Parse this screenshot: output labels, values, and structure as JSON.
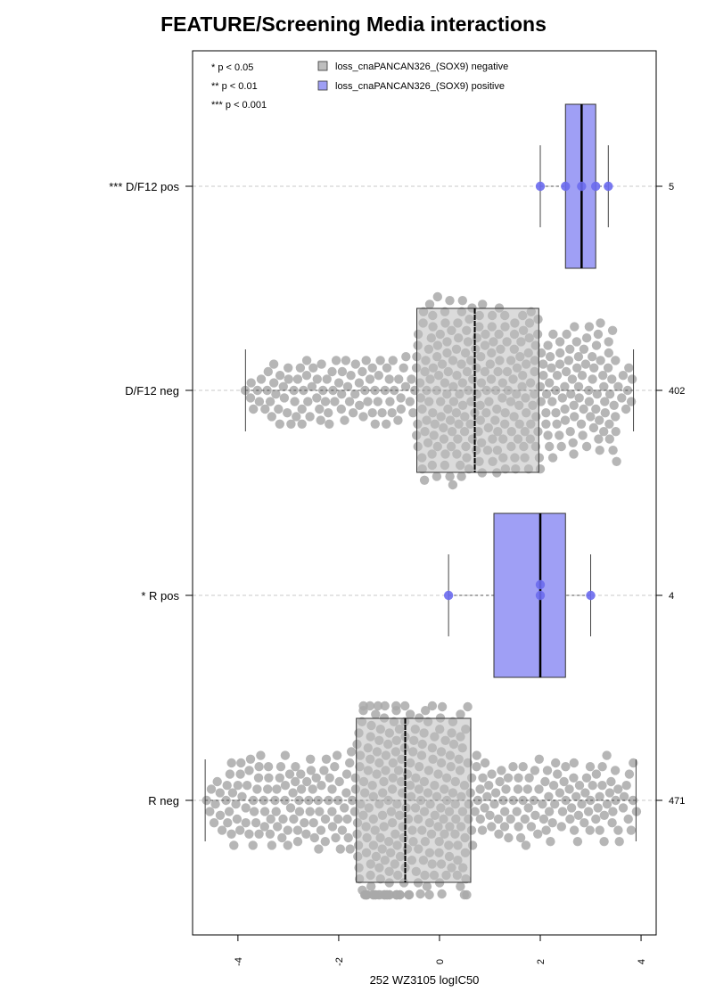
{
  "chart_data": {
    "type": "boxplot",
    "title": "FEATURE/Screening Media interactions",
    "xlabel": "252 WZ3105 logIC50",
    "xlim": [
      -4.9,
      4.3
    ],
    "x_ticks": [
      -4,
      -2,
      0,
      2,
      4
    ],
    "x_tick_labels": [
      "-4",
      "-2",
      "0",
      "2",
      "4"
    ],
    "orientation": "horizontal",
    "grid": "horizontal dashed lines at each group",
    "legend": {
      "position": "top",
      "significance": [
        "* p < 0.05",
        "** p < 0.01",
        "*** p < 0.001"
      ],
      "entries": [
        {
          "label": "loss_cnaPANCAN326_(SOX9) negative",
          "color": "#bebebe"
        },
        {
          "label": "loss_cnaPANCAN326_(SOX9) positive",
          "color": "#9f9ff5"
        }
      ]
    },
    "groups": [
      {
        "label": "*** D/F12 pos",
        "n": "5",
        "status": "positive",
        "min": 2.0,
        "q1": 2.5,
        "median": 2.82,
        "q3": 3.1,
        "max": 3.35,
        "points": [
          2.0,
          2.5,
          2.82,
          3.1,
          3.35
        ]
      },
      {
        "label": "D/F12 neg",
        "n": "402",
        "status": "negative",
        "min": -3.85,
        "q1": -0.45,
        "median": 0.7,
        "q3": 1.97,
        "max": 3.85
      },
      {
        "label": "* R pos",
        "n": "4",
        "status": "positive",
        "min": 0.18,
        "q1": 1.08,
        "median": 2.0,
        "q3": 2.5,
        "max": 3.0,
        "points": [
          0.18,
          2.0,
          2.0,
          3.0
        ]
      },
      {
        "label": "R neg",
        "n": "471",
        "status": "negative",
        "min": -4.65,
        "q1": -1.65,
        "median": -0.68,
        "q3": 0.62,
        "max": 3.9
      }
    ]
  },
  "colors": {
    "negative_box": "#bebebe",
    "negative_point": "#a9a9a9",
    "positive_box": "#9f9ff5",
    "positive_point": "#6a6aee",
    "grid": "#c8c8c8"
  }
}
